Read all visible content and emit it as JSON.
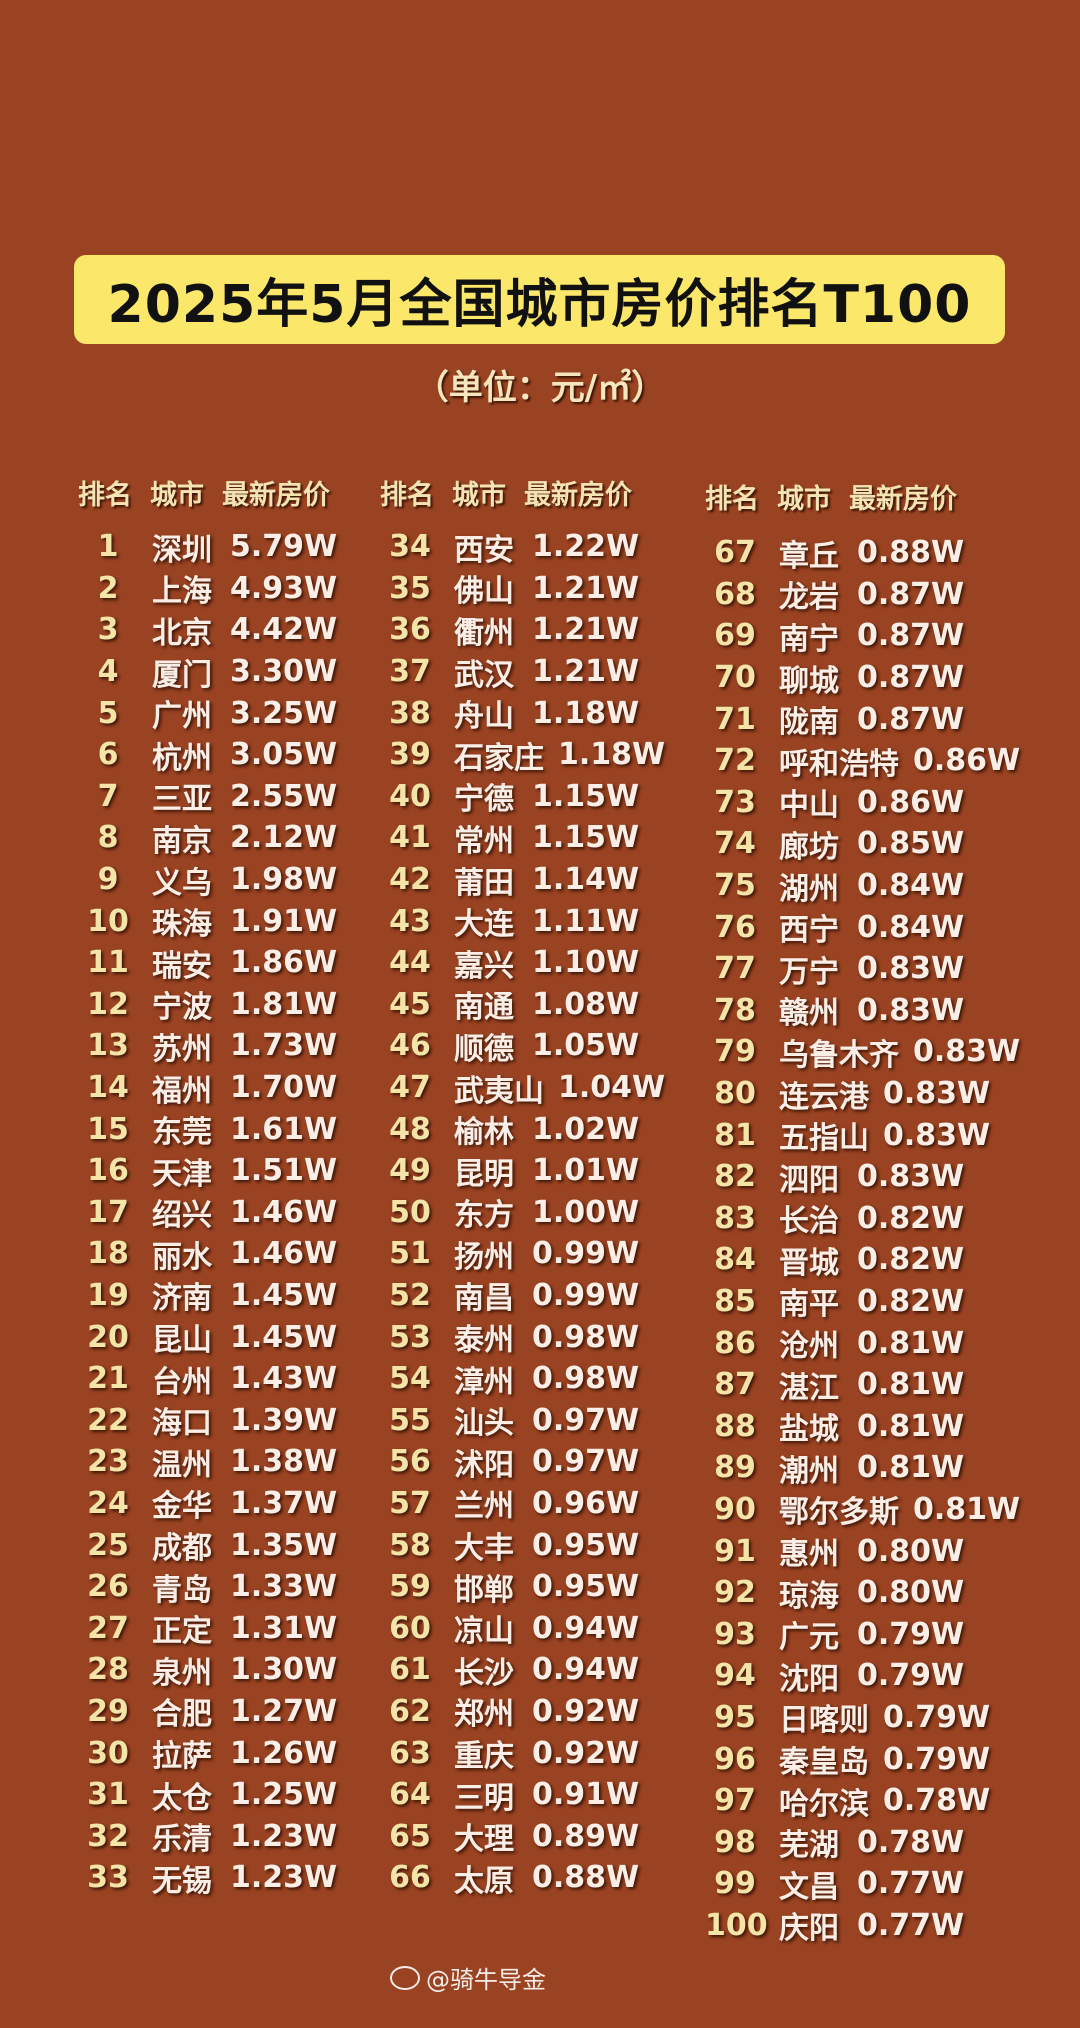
{
  "title": "2025年5月全国城市房价排名T100",
  "unit": "（单位：元/㎡）",
  "headers": {
    "rank": "排名",
    "city": "城市",
    "price": "最新房价"
  },
  "watermark": "@骑牛导金",
  "colors": {
    "background": "#9a4322",
    "title_box": "#fbe86a",
    "rank_text": "#f4e4a8",
    "text": "#fbeee6"
  },
  "rows": [
    {
      "rank": "1",
      "city": "深圳",
      "price": "5.79W"
    },
    {
      "rank": "2",
      "city": "上海",
      "price": "4.93W"
    },
    {
      "rank": "3",
      "city": "北京",
      "price": "4.42W"
    },
    {
      "rank": "4",
      "city": "厦门",
      "price": "3.30W"
    },
    {
      "rank": "5",
      "city": "广州",
      "price": "3.25W"
    },
    {
      "rank": "6",
      "city": "杭州",
      "price": "3.05W"
    },
    {
      "rank": "7",
      "city": "三亚",
      "price": "2.55W"
    },
    {
      "rank": "8",
      "city": "南京",
      "price": "2.12W"
    },
    {
      "rank": "9",
      "city": "义乌",
      "price": "1.98W"
    },
    {
      "rank": "10",
      "city": "珠海",
      "price": "1.91W"
    },
    {
      "rank": "11",
      "city": "瑞安",
      "price": "1.86W"
    },
    {
      "rank": "12",
      "city": "宁波",
      "price": "1.81W"
    },
    {
      "rank": "13",
      "city": "苏州",
      "price": "1.73W"
    },
    {
      "rank": "14",
      "city": "福州",
      "price": "1.70W"
    },
    {
      "rank": "15",
      "city": "东莞",
      "price": "1.61W"
    },
    {
      "rank": "16",
      "city": "天津",
      "price": "1.51W"
    },
    {
      "rank": "17",
      "city": "绍兴",
      "price": "1.46W"
    },
    {
      "rank": "18",
      "city": "丽水",
      "price": "1.46W"
    },
    {
      "rank": "19",
      "city": "济南",
      "price": "1.45W"
    },
    {
      "rank": "20",
      "city": "昆山",
      "price": "1.45W"
    },
    {
      "rank": "21",
      "city": "台州",
      "price": "1.43W"
    },
    {
      "rank": "22",
      "city": "海口",
      "price": "1.39W"
    },
    {
      "rank": "23",
      "city": "温州",
      "price": "1.38W"
    },
    {
      "rank": "24",
      "city": "金华",
      "price": "1.37W"
    },
    {
      "rank": "25",
      "city": "成都",
      "price": "1.35W"
    },
    {
      "rank": "26",
      "city": "青岛",
      "price": "1.33W"
    },
    {
      "rank": "27",
      "city": "正定",
      "price": "1.31W"
    },
    {
      "rank": "28",
      "city": "泉州",
      "price": "1.30W"
    },
    {
      "rank": "29",
      "city": "合肥",
      "price": "1.27W"
    },
    {
      "rank": "30",
      "city": "拉萨",
      "price": "1.26W"
    },
    {
      "rank": "31",
      "city": "太仓",
      "price": "1.25W"
    },
    {
      "rank": "32",
      "city": "乐清",
      "price": "1.23W"
    },
    {
      "rank": "33",
      "city": "无锡",
      "price": "1.23W"
    },
    {
      "rank": "34",
      "city": "西安",
      "price": "1.22W"
    },
    {
      "rank": "35",
      "city": "佛山",
      "price": "1.21W"
    },
    {
      "rank": "36",
      "city": "衢州",
      "price": "1.21W"
    },
    {
      "rank": "37",
      "city": "武汉",
      "price": "1.21W"
    },
    {
      "rank": "38",
      "city": "舟山",
      "price": "1.18W"
    },
    {
      "rank": "39",
      "city": "石家庄",
      "price": "1.18W"
    },
    {
      "rank": "40",
      "city": "宁德",
      "price": "1.15W"
    },
    {
      "rank": "41",
      "city": "常州",
      "price": "1.15W"
    },
    {
      "rank": "42",
      "city": "莆田",
      "price": "1.14W"
    },
    {
      "rank": "43",
      "city": "大连",
      "price": "1.11W"
    },
    {
      "rank": "44",
      "city": "嘉兴",
      "price": "1.10W"
    },
    {
      "rank": "45",
      "city": "南通",
      "price": "1.08W"
    },
    {
      "rank": "46",
      "city": "顺德",
      "price": "1.05W"
    },
    {
      "rank": "47",
      "city": "武夷山",
      "price": "1.04W"
    },
    {
      "rank": "48",
      "city": "榆林",
      "price": "1.02W"
    },
    {
      "rank": "49",
      "city": "昆明",
      "price": "1.01W"
    },
    {
      "rank": "50",
      "city": "东方",
      "price": "1.00W"
    },
    {
      "rank": "51",
      "city": "扬州",
      "price": "0.99W"
    },
    {
      "rank": "52",
      "city": "南昌",
      "price": "0.99W"
    },
    {
      "rank": "53",
      "city": "泰州",
      "price": "0.98W"
    },
    {
      "rank": "54",
      "city": "漳州",
      "price": "0.98W"
    },
    {
      "rank": "55",
      "city": "汕头",
      "price": "0.97W"
    },
    {
      "rank": "56",
      "city": "沭阳",
      "price": "0.97W"
    },
    {
      "rank": "57",
      "city": "兰州",
      "price": "0.96W"
    },
    {
      "rank": "58",
      "city": "大丰",
      "price": "0.95W"
    },
    {
      "rank": "59",
      "city": "邯郸",
      "price": "0.95W"
    },
    {
      "rank": "60",
      "city": "凉山",
      "price": "0.94W"
    },
    {
      "rank": "61",
      "city": "长沙",
      "price": "0.94W"
    },
    {
      "rank": "62",
      "city": "郑州",
      "price": "0.92W"
    },
    {
      "rank": "63",
      "city": "重庆",
      "price": "0.92W"
    },
    {
      "rank": "64",
      "city": "三明",
      "price": "0.91W"
    },
    {
      "rank": "65",
      "city": "大理",
      "price": "0.89W"
    },
    {
      "rank": "66",
      "city": "太原",
      "price": "0.88W"
    },
    {
      "rank": "67",
      "city": "章丘",
      "price": "0.88W"
    },
    {
      "rank": "68",
      "city": "龙岩",
      "price": "0.87W"
    },
    {
      "rank": "69",
      "city": "南宁",
      "price": "0.87W"
    },
    {
      "rank": "70",
      "city": "聊城",
      "price": "0.87W"
    },
    {
      "rank": "71",
      "city": "陇南",
      "price": "0.87W"
    },
    {
      "rank": "72",
      "city": "呼和浩特",
      "price": "0.86W"
    },
    {
      "rank": "73",
      "city": "中山",
      "price": "0.86W"
    },
    {
      "rank": "74",
      "city": "廊坊",
      "price": "0.85W"
    },
    {
      "rank": "75",
      "city": "湖州",
      "price": "0.84W"
    },
    {
      "rank": "76",
      "city": "西宁",
      "price": "0.84W"
    },
    {
      "rank": "77",
      "city": "万宁",
      "price": "0.83W"
    },
    {
      "rank": "78",
      "city": "赣州",
      "price": "0.83W"
    },
    {
      "rank": "79",
      "city": "乌鲁木齐",
      "price": "0.83W"
    },
    {
      "rank": "80",
      "city": "连云港",
      "price": "0.83W"
    },
    {
      "rank": "81",
      "city": "五指山",
      "price": "0.83W"
    },
    {
      "rank": "82",
      "city": "泗阳",
      "price": "0.83W"
    },
    {
      "rank": "83",
      "city": "长治",
      "price": "0.82W"
    },
    {
      "rank": "84",
      "city": "晋城",
      "price": "0.82W"
    },
    {
      "rank": "85",
      "city": "南平",
      "price": "0.82W"
    },
    {
      "rank": "86",
      "city": "沧州",
      "price": "0.81W"
    },
    {
      "rank": "87",
      "city": "湛江",
      "price": "0.81W"
    },
    {
      "rank": "88",
      "city": "盐城",
      "price": "0.81W"
    },
    {
      "rank": "89",
      "city": "潮州",
      "price": "0.81W"
    },
    {
      "rank": "90",
      "city": "鄂尔多斯",
      "price": "0.81W"
    },
    {
      "rank": "91",
      "city": "惠州",
      "price": "0.80W"
    },
    {
      "rank": "92",
      "city": "琼海",
      "price": "0.80W"
    },
    {
      "rank": "93",
      "city": "广元",
      "price": "0.79W"
    },
    {
      "rank": "94",
      "city": "沈阳",
      "price": "0.79W"
    },
    {
      "rank": "95",
      "city": "日喀则",
      "price": "0.79W"
    },
    {
      "rank": "96",
      "city": "秦皇岛",
      "price": "0.79W"
    },
    {
      "rank": "97",
      "city": "哈尔滨",
      "price": "0.78W"
    },
    {
      "rank": "98",
      "city": "芜湖",
      "price": "0.78W"
    },
    {
      "rank": "99",
      "city": "文昌",
      "price": "0.77W"
    },
    {
      "rank": "100",
      "city": "庆阳",
      "price": "0.77W"
    }
  ]
}
